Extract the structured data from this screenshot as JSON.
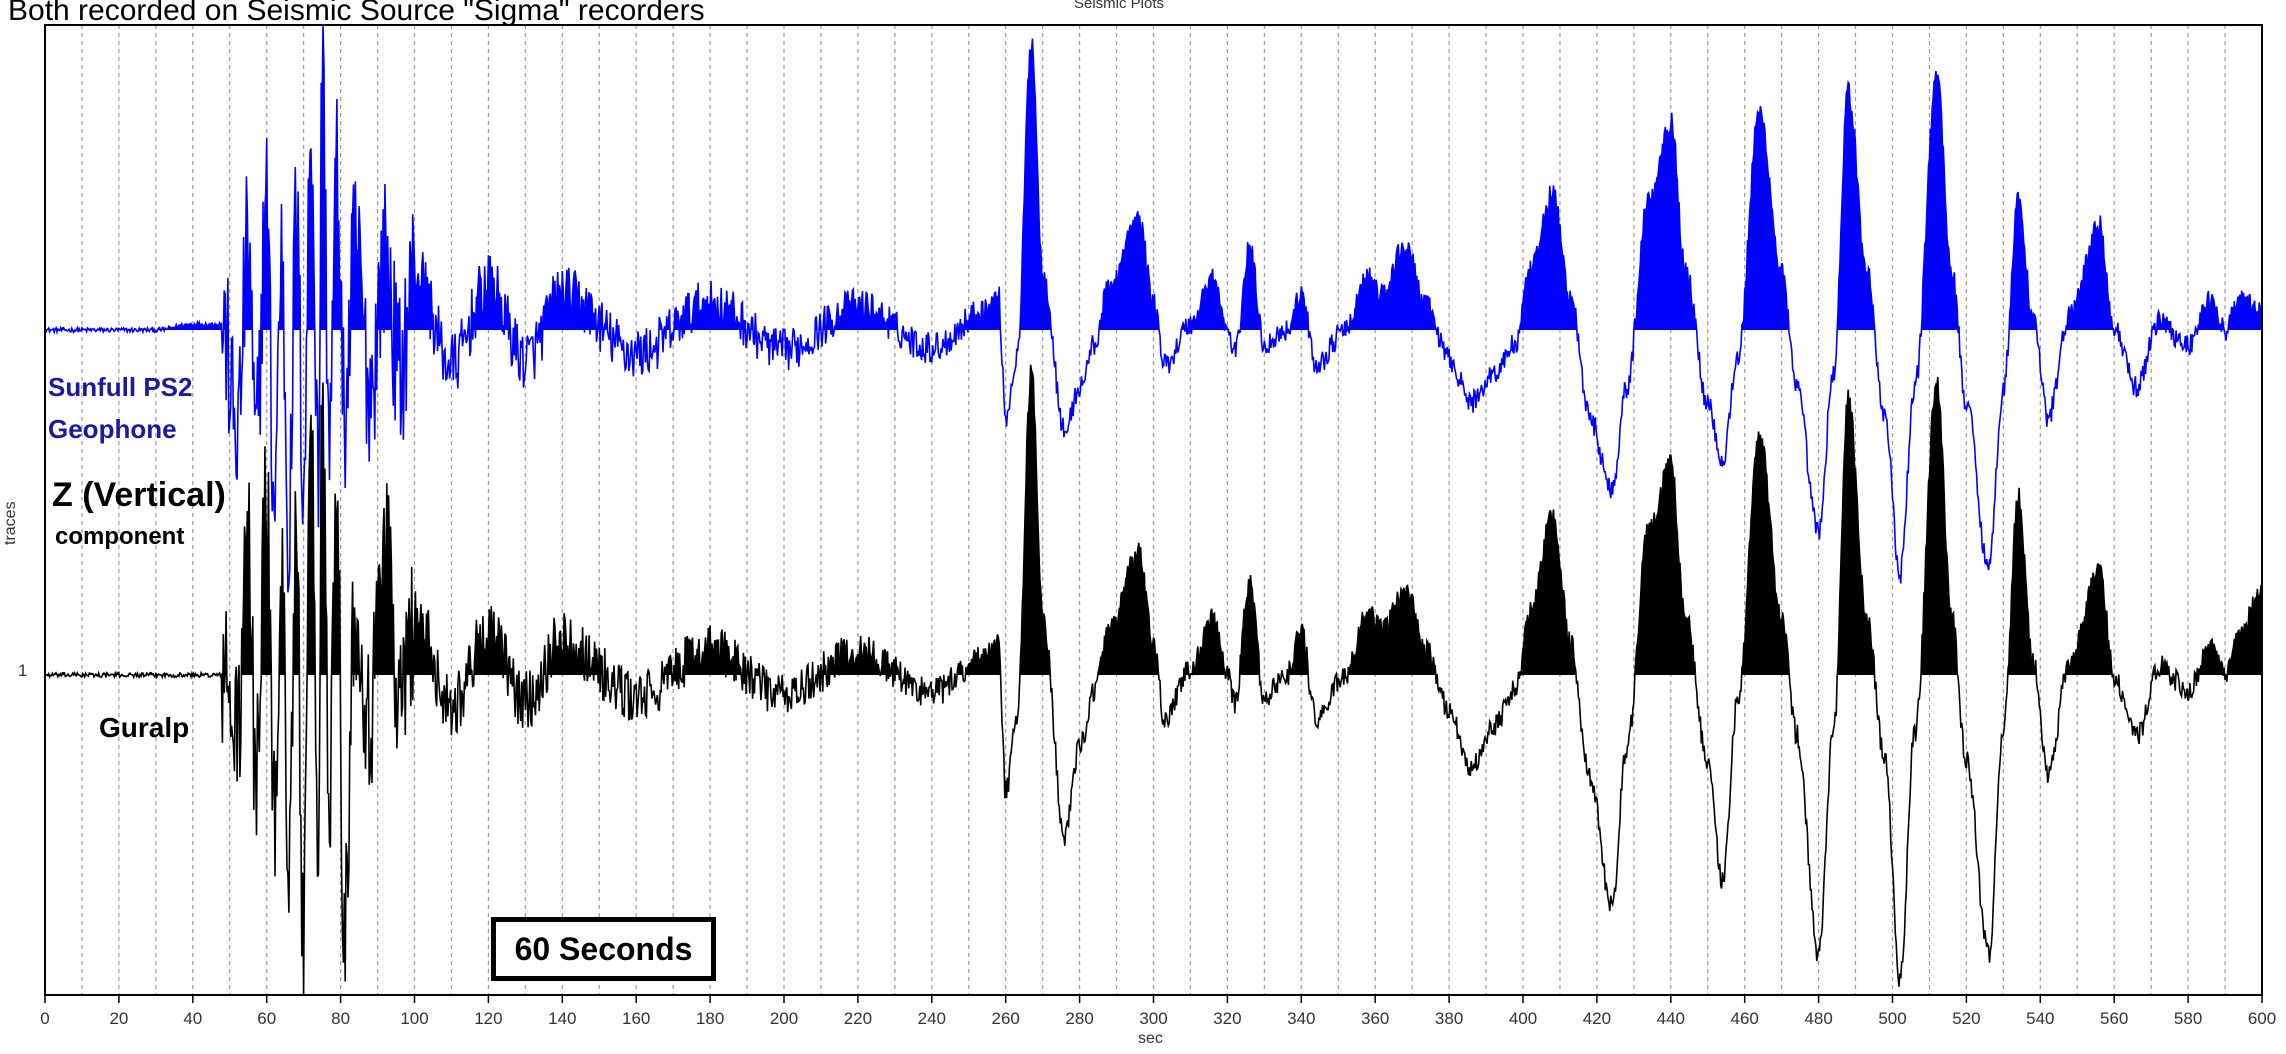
{
  "caption": "Both recorded on Seismic Source \"Sigma\" recorders",
  "labels": {
    "geophone_line1": "Sunfull PS2",
    "geophone_line2": "Geophone",
    "z_title": "Z (Vertical)",
    "component": "component",
    "guralp": "Guralp",
    "scale_box": "60 Seconds"
  },
  "colors": {
    "geophone": "#0000ff",
    "guralp": "#000000",
    "grid": "#999999",
    "label_blue": "#1a1aa0"
  },
  "chart_data": {
    "type": "line",
    "title": "Seismic Plots",
    "xlabel": "sec",
    "ylabel": "traces",
    "xlim": [
      0,
      600
    ],
    "x_ticks": [
      0,
      20,
      40,
      60,
      80,
      100,
      120,
      140,
      160,
      180,
      200,
      220,
      240,
      260,
      280,
      300,
      320,
      340,
      360,
      380,
      400,
      420,
      440,
      460,
      480,
      500,
      520,
      540,
      560,
      580,
      600
    ],
    "y_ticks": [
      "1"
    ],
    "grid": "vertical dashed every 10 sec",
    "fill": "positive half of each trace filled (variable area)",
    "series": [
      {
        "name": "Sunfull PS2 Geophone",
        "color": "#0000ff",
        "peaks": [
          [
            0,
            0.0
          ],
          [
            30,
            0.0
          ],
          [
            40,
            0.02
          ],
          [
            48,
            0.02
          ],
          [
            52,
            -0.35
          ],
          [
            55,
            0.3
          ],
          [
            57,
            -0.4
          ],
          [
            60,
            0.45
          ],
          [
            62,
            -0.6
          ],
          [
            64,
            0.25
          ],
          [
            66,
            -0.7
          ],
          [
            68,
            0.4
          ],
          [
            70,
            -0.5
          ],
          [
            72,
            0.7
          ],
          [
            74,
            -0.5
          ],
          [
            75,
            0.95
          ],
          [
            77,
            -0.35
          ],
          [
            79,
            0.55
          ],
          [
            81,
            -0.3
          ],
          [
            84,
            0.3
          ],
          [
            88,
            -0.2
          ],
          [
            92,
            0.25
          ],
          [
            96,
            -0.15
          ],
          [
            100,
            0.2
          ],
          [
            110,
            -0.12
          ],
          [
            120,
            0.15
          ],
          [
            130,
            -0.1
          ],
          [
            140,
            0.12
          ],
          [
            160,
            -0.08
          ],
          [
            180,
            0.09
          ],
          [
            200,
            -0.07
          ],
          [
            220,
            0.08
          ],
          [
            240,
            -0.06
          ],
          [
            255,
            0.07
          ],
          [
            258,
            0.12
          ],
          [
            260,
            -0.3
          ],
          [
            263,
            -0.1
          ],
          [
            267,
            1.0
          ],
          [
            270,
            0.2
          ],
          [
            276,
            -0.35
          ],
          [
            280,
            -0.2
          ],
          [
            284,
            -0.05
          ],
          [
            288,
            0.15
          ],
          [
            296,
            0.38
          ],
          [
            300,
            0.1
          ],
          [
            303,
            -0.12
          ],
          [
            310,
            0.02
          ],
          [
            316,
            0.18
          ],
          [
            320,
            0.0
          ],
          [
            322,
            -0.08
          ],
          [
            326,
            0.28
          ],
          [
            330,
            -0.05
          ],
          [
            336,
            0.0
          ],
          [
            340,
            0.12
          ],
          [
            344,
            -0.12
          ],
          [
            352,
            0.0
          ],
          [
            358,
            0.18
          ],
          [
            362,
            0.12
          ],
          [
            368,
            0.29
          ],
          [
            374,
            0.08
          ],
          [
            380,
            -0.1
          ],
          [
            386,
            -0.25
          ],
          [
            392,
            -0.15
          ],
          [
            398,
            -0.05
          ],
          [
            402,
            0.2
          ],
          [
            408,
            0.47
          ],
          [
            413,
            0.1
          ],
          [
            418,
            -0.3
          ],
          [
            424,
            -0.55
          ],
          [
            428,
            -0.2
          ],
          [
            434,
            0.45
          ],
          [
            440,
            0.72
          ],
          [
            444,
            0.2
          ],
          [
            450,
            -0.25
          ],
          [
            454,
            -0.45
          ],
          [
            458,
            -0.1
          ],
          [
            464,
            0.75
          ],
          [
            470,
            0.2
          ],
          [
            474,
            -0.2
          ],
          [
            480,
            -0.7
          ],
          [
            484,
            -0.15
          ],
          [
            488,
            0.82
          ],
          [
            493,
            0.2
          ],
          [
            498,
            -0.3
          ],
          [
            502,
            -0.85
          ],
          [
            506,
            -0.2
          ],
          [
            512,
            0.88
          ],
          [
            516,
            0.2
          ],
          [
            520,
            -0.25
          ],
          [
            526,
            -0.82
          ],
          [
            530,
            -0.2
          ],
          [
            534,
            0.44
          ],
          [
            538,
            0.05
          ],
          [
            542,
            -0.3
          ],
          [
            548,
            0.05
          ],
          [
            556,
            0.36
          ],
          [
            560,
            0.0
          ],
          [
            566,
            -0.2
          ],
          [
            572,
            0.03
          ],
          [
            580,
            -0.05
          ],
          [
            586,
            0.1
          ],
          [
            590,
            0.0
          ],
          [
            594,
            0.1
          ],
          [
            600,
            0.06
          ]
        ]
      },
      {
        "name": "Guralp",
        "color": "#000000",
        "peaks": [
          [
            0,
            0.0
          ],
          [
            30,
            0.0
          ],
          [
            48,
            0.0
          ],
          [
            52,
            -0.2
          ],
          [
            55,
            0.45
          ],
          [
            57,
            -0.3
          ],
          [
            60,
            0.6
          ],
          [
            62,
            -0.5
          ],
          [
            64,
            0.3
          ],
          [
            66,
            -0.55
          ],
          [
            68,
            0.45
          ],
          [
            70,
            -0.9
          ],
          [
            72,
            0.8
          ],
          [
            74,
            -0.6
          ],
          [
            75,
            1.0
          ],
          [
            77,
            -0.4
          ],
          [
            79,
            0.7
          ],
          [
            81,
            -0.85
          ],
          [
            84,
            0.25
          ],
          [
            88,
            -0.15
          ],
          [
            92,
            0.55
          ],
          [
            96,
            -0.12
          ],
          [
            100,
            0.2
          ],
          [
            110,
            -0.1
          ],
          [
            120,
            0.14
          ],
          [
            130,
            -0.09
          ],
          [
            140,
            0.12
          ],
          [
            160,
            -0.08
          ],
          [
            180,
            0.09
          ],
          [
            200,
            -0.07
          ],
          [
            220,
            0.08
          ],
          [
            240,
            -0.06
          ],
          [
            255,
            0.07
          ],
          [
            258,
            0.1
          ],
          [
            260,
            -0.4
          ],
          [
            263,
            -0.15
          ],
          [
            267,
            1.05
          ],
          [
            270,
            0.2
          ],
          [
            276,
            -0.55
          ],
          [
            280,
            -0.25
          ],
          [
            284,
            -0.05
          ],
          [
            288,
            0.15
          ],
          [
            296,
            0.42
          ],
          [
            300,
            0.1
          ],
          [
            303,
            -0.15
          ],
          [
            310,
            0.02
          ],
          [
            316,
            0.19
          ],
          [
            320,
            0.0
          ],
          [
            322,
            -0.1
          ],
          [
            326,
            0.32
          ],
          [
            330,
            -0.08
          ],
          [
            336,
            0.0
          ],
          [
            340,
            0.15
          ],
          [
            344,
            -0.15
          ],
          [
            352,
            0.0
          ],
          [
            358,
            0.21
          ],
          [
            362,
            0.15
          ],
          [
            368,
            0.3
          ],
          [
            374,
            0.08
          ],
          [
            380,
            -0.12
          ],
          [
            386,
            -0.32
          ],
          [
            392,
            -0.18
          ],
          [
            398,
            -0.05
          ],
          [
            402,
            0.22
          ],
          [
            408,
            0.55
          ],
          [
            413,
            0.1
          ],
          [
            418,
            -0.35
          ],
          [
            424,
            -0.8
          ],
          [
            428,
            -0.25
          ],
          [
            434,
            0.5
          ],
          [
            440,
            0.72
          ],
          [
            444,
            0.2
          ],
          [
            450,
            -0.3
          ],
          [
            454,
            -0.72
          ],
          [
            458,
            -0.1
          ],
          [
            464,
            0.82
          ],
          [
            470,
            0.2
          ],
          [
            474,
            -0.2
          ],
          [
            480,
            -0.96
          ],
          [
            484,
            -0.2
          ],
          [
            488,
            0.95
          ],
          [
            493,
            0.2
          ],
          [
            498,
            -0.3
          ],
          [
            502,
            -1.05
          ],
          [
            506,
            -0.2
          ],
          [
            512,
            1.0
          ],
          [
            516,
            0.2
          ],
          [
            520,
            -0.3
          ],
          [
            526,
            -0.96
          ],
          [
            530,
            -0.2
          ],
          [
            534,
            0.62
          ],
          [
            538,
            0.05
          ],
          [
            542,
            -0.35
          ],
          [
            548,
            0.05
          ],
          [
            556,
            0.36
          ],
          [
            560,
            0.0
          ],
          [
            566,
            -0.22
          ],
          [
            572,
            0.03
          ],
          [
            580,
            -0.05
          ],
          [
            586,
            0.1
          ],
          [
            590,
            0.0
          ],
          [
            594,
            0.15
          ],
          [
            600,
            0.28
          ]
        ]
      }
    ]
  }
}
